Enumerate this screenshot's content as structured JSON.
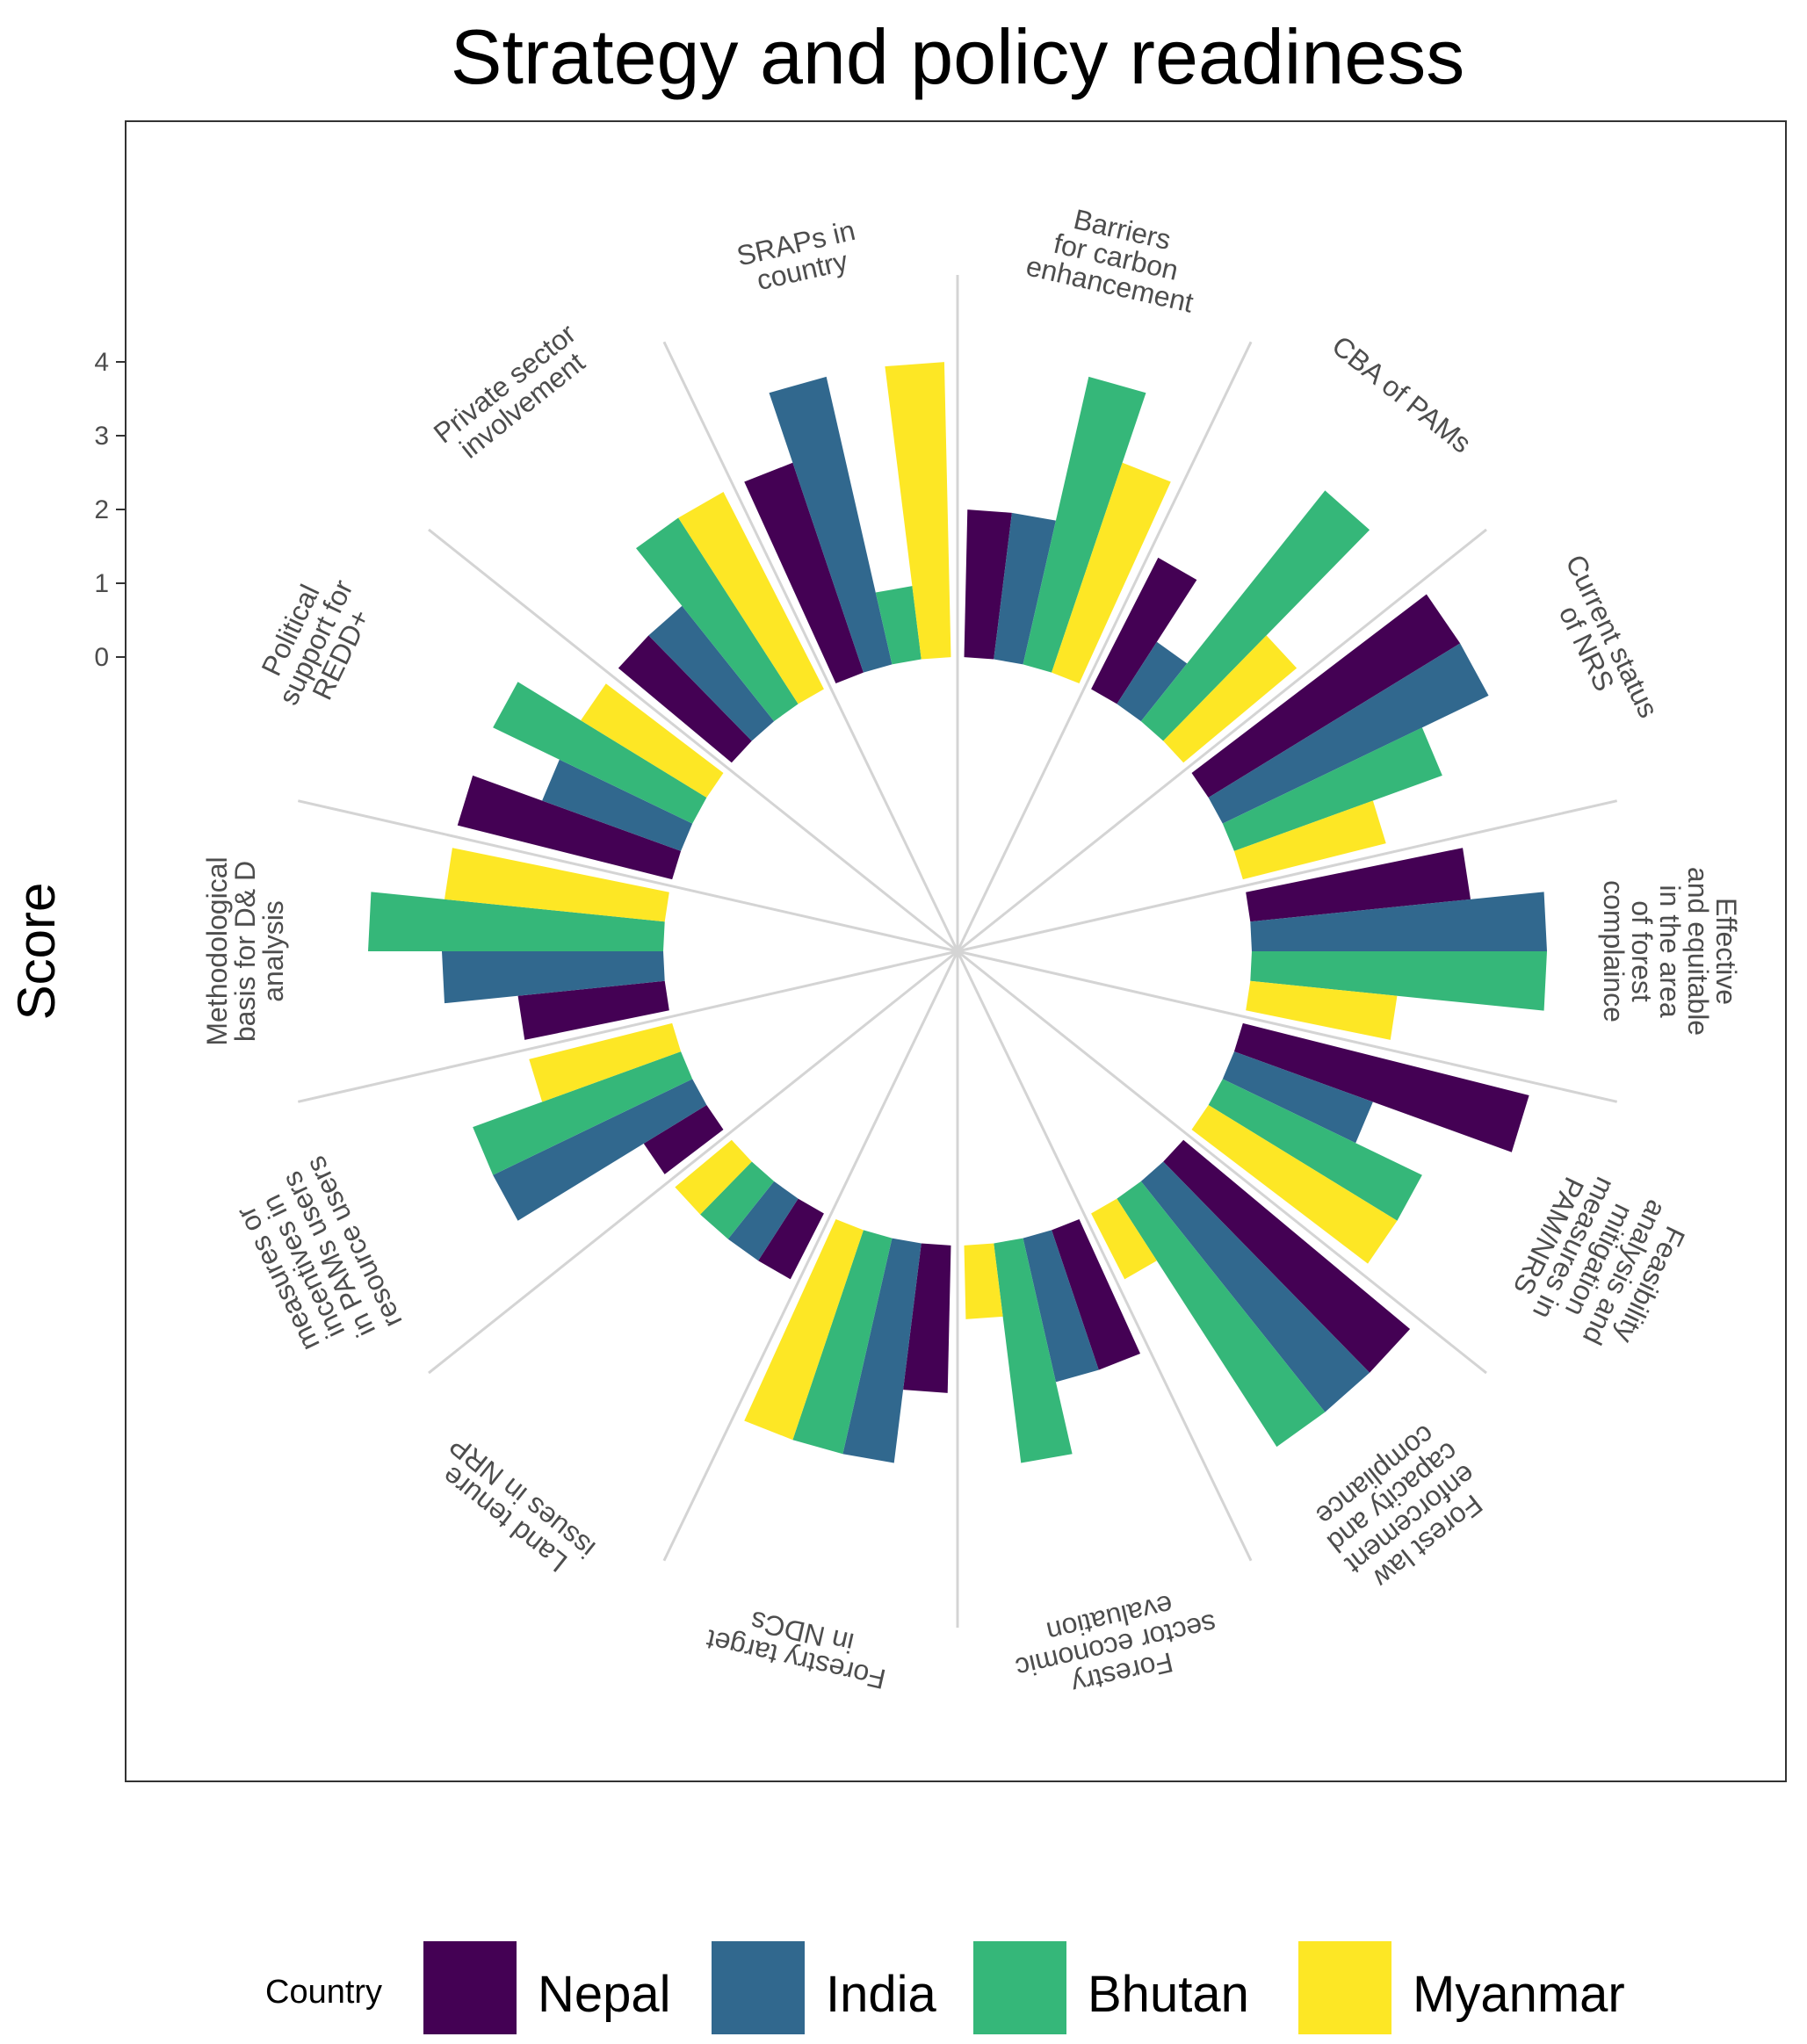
{
  "chart_data": {
    "type": "bar",
    "subtype": "radial-grouped-bar",
    "title": "Strategy and policy readiness",
    "ylabel": "Score",
    "xlabel": "",
    "ylim": [
      0,
      4
    ],
    "yticks": [
      "0",
      "1",
      "2",
      "3",
      "4"
    ],
    "legend_title": "Country",
    "legend_position": "bottom",
    "grid": true,
    "categories": [
      "Barriers\nfor carbon\nenhancement",
      "CBA of PAMs",
      "Current status\nof NRS",
      "Effective\nand equitable\nin the area\nof forest\ncomplaince",
      "Feasibility\nanalysis and\nmitigation\nmeasures in\nPAM/NRS",
      "Forest law\nenforcement\ncapacity and\ncompliance",
      "Forestry\nsector economic\nevaluation",
      "Forestry target\nin NDCs",
      "Land tenure\nissues in NRP",
      "measures or\nincentives in\nin PAMs users\nresource users",
      "Methodological\nbasis for D& D\nanalysis",
      "Political\nsupport for\nREDD+",
      "Private sector\ninvolvement",
      "SRAPs in\ncountry"
    ],
    "series": [
      {
        "name": "Nepal",
        "color": "#440154",
        "values": [
          2,
          2,
          4,
          3,
          4,
          4,
          2,
          2,
          1,
          1,
          2,
          3,
          2,
          3
        ]
      },
      {
        "name": "India",
        "color": "#31688e",
        "values": [
          2,
          1,
          4,
          4,
          2,
          4,
          2,
          3,
          1,
          3,
          3,
          2,
          2,
          4
        ]
      },
      {
        "name": "Bhutan",
        "color": "#35b779",
        "values": [
          4,
          4,
          3,
          4,
          3,
          4,
          3,
          3,
          1,
          3,
          4,
          3,
          3,
          1
        ]
      },
      {
        "name": "Myanmar",
        "color": "#fde725",
        "values": [
          3,
          2,
          2,
          2,
          3,
          1,
          1,
          3,
          1,
          2,
          3,
          2,
          3,
          4
        ]
      }
    ]
  }
}
